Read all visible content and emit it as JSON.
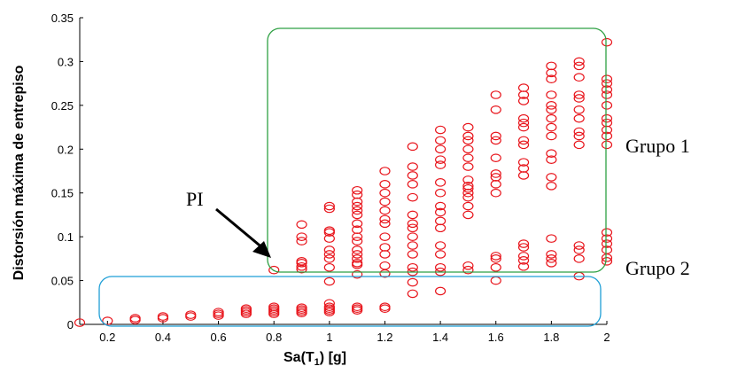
{
  "chart_data": {
    "type": "scatter",
    "title": "",
    "xlabel_main": "Sa(T",
    "xlabel_sub": "1",
    "xlabel_end": ") [g]",
    "ylabel": "Distorsión máxima de entrepiso",
    "xlim": [
      0.1,
      2.0
    ],
    "ylim": [
      0,
      0.35
    ],
    "xticks": [
      0.2,
      0.4,
      0.6,
      0.8,
      1,
      1.2,
      1.4,
      1.6,
      1.8,
      2
    ],
    "xtick_labels": [
      "0.2",
      "0.4",
      "0.6",
      "0.8",
      "1",
      "1.2",
      "1.4",
      "1.6",
      "1.8",
      "2"
    ],
    "yticks": [
      0,
      0.05,
      0.1,
      0.15,
      0.2,
      0.25,
      0.3,
      0.35
    ],
    "ytick_labels": [
      "0",
      "0.05",
      "0.1",
      "0.15",
      "0.2",
      "0.25",
      "0.3",
      "0.35"
    ],
    "marker": "o",
    "marker_color": "#e8141b",
    "series": [
      {
        "name": "Grupo 2",
        "points": [
          [
            0.1,
            0.002
          ],
          [
            0.2,
            0.004
          ],
          [
            0.3,
            0.005
          ],
          [
            0.3,
            0.007
          ],
          [
            0.4,
            0.007
          ],
          [
            0.4,
            0.009
          ],
          [
            0.5,
            0.009
          ],
          [
            0.5,
            0.011
          ],
          [
            0.6,
            0.01
          ],
          [
            0.6,
            0.012
          ],
          [
            0.6,
            0.014
          ],
          [
            0.7,
            0.012
          ],
          [
            0.7,
            0.014
          ],
          [
            0.7,
            0.016
          ],
          [
            0.7,
            0.018
          ],
          [
            0.8,
            0.012
          ],
          [
            0.8,
            0.014
          ],
          [
            0.8,
            0.016
          ],
          [
            0.8,
            0.018
          ],
          [
            0.8,
            0.02
          ],
          [
            0.9,
            0.013
          ],
          [
            0.9,
            0.015
          ],
          [
            0.9,
            0.017
          ],
          [
            0.9,
            0.019
          ],
          [
            1.0,
            0.014
          ],
          [
            1.0,
            0.016
          ],
          [
            1.0,
            0.018
          ],
          [
            1.0,
            0.02
          ],
          [
            1.0,
            0.024
          ],
          [
            1.1,
            0.016
          ],
          [
            1.1,
            0.018
          ],
          [
            1.1,
            0.02
          ],
          [
            1.2,
            0.018
          ],
          [
            1.2,
            0.02
          ]
        ]
      },
      {
        "name": "Grupo 1",
        "points": [
          [
            0.8,
            0.062
          ],
          [
            0.9,
            0.063
          ],
          [
            0.9,
            0.066
          ],
          [
            0.9,
            0.07
          ],
          [
            0.9,
            0.072
          ],
          [
            0.9,
            0.095
          ],
          [
            0.9,
            0.1
          ],
          [
            0.9,
            0.114
          ],
          [
            1.0,
            0.049
          ],
          [
            1.0,
            0.065
          ],
          [
            1.0,
            0.075
          ],
          [
            1.0,
            0.08
          ],
          [
            1.0,
            0.085
          ],
          [
            1.0,
            0.098
          ],
          [
            1.0,
            0.105
          ],
          [
            1.0,
            0.107
          ],
          [
            1.0,
            0.132
          ],
          [
            1.0,
            0.135
          ],
          [
            1.1,
            0.057
          ],
          [
            1.1,
            0.068
          ],
          [
            1.1,
            0.07
          ],
          [
            1.1,
            0.075
          ],
          [
            1.1,
            0.08
          ],
          [
            1.1,
            0.085
          ],
          [
            1.1,
            0.095
          ],
          [
            1.1,
            0.1
          ],
          [
            1.1,
            0.108
          ],
          [
            1.1,
            0.115
          ],
          [
            1.1,
            0.125
          ],
          [
            1.1,
            0.13
          ],
          [
            1.1,
            0.135
          ],
          [
            1.1,
            0.14
          ],
          [
            1.1,
            0.148
          ],
          [
            1.1,
            0.153
          ],
          [
            1.2,
            0.058
          ],
          [
            1.2,
            0.067
          ],
          [
            1.2,
            0.08
          ],
          [
            1.2,
            0.088
          ],
          [
            1.2,
            0.1
          ],
          [
            1.2,
            0.115
          ],
          [
            1.2,
            0.12
          ],
          [
            1.2,
            0.13
          ],
          [
            1.2,
            0.14
          ],
          [
            1.2,
            0.15
          ],
          [
            1.2,
            0.16
          ],
          [
            1.2,
            0.175
          ],
          [
            1.3,
            0.035
          ],
          [
            1.3,
            0.048
          ],
          [
            1.3,
            0.06
          ],
          [
            1.3,
            0.065
          ],
          [
            1.3,
            0.08
          ],
          [
            1.3,
            0.09
          ],
          [
            1.3,
            0.1
          ],
          [
            1.3,
            0.11
          ],
          [
            1.3,
            0.115
          ],
          [
            1.3,
            0.125
          ],
          [
            1.3,
            0.145
          ],
          [
            1.3,
            0.16
          ],
          [
            1.3,
            0.17
          ],
          [
            1.3,
            0.18
          ],
          [
            1.3,
            0.203
          ],
          [
            1.4,
            0.038
          ],
          [
            1.4,
            0.06
          ],
          [
            1.4,
            0.065
          ],
          [
            1.4,
            0.08
          ],
          [
            1.4,
            0.09
          ],
          [
            1.4,
            0.11
          ],
          [
            1.4,
            0.118
          ],
          [
            1.4,
            0.128
          ],
          [
            1.4,
            0.135
          ],
          [
            1.4,
            0.15
          ],
          [
            1.4,
            0.162
          ],
          [
            1.4,
            0.182
          ],
          [
            1.4,
            0.188
          ],
          [
            1.4,
            0.2
          ],
          [
            1.4,
            0.21
          ],
          [
            1.4,
            0.222
          ],
          [
            1.5,
            0.062
          ],
          [
            1.5,
            0.067
          ],
          [
            1.5,
            0.125
          ],
          [
            1.5,
            0.135
          ],
          [
            1.5,
            0.145
          ],
          [
            1.5,
            0.15
          ],
          [
            1.5,
            0.155
          ],
          [
            1.5,
            0.158
          ],
          [
            1.5,
            0.165
          ],
          [
            1.5,
            0.18
          ],
          [
            1.5,
            0.19
          ],
          [
            1.5,
            0.2
          ],
          [
            1.5,
            0.21
          ],
          [
            1.5,
            0.215
          ],
          [
            1.5,
            0.225
          ],
          [
            1.6,
            0.05
          ],
          [
            1.6,
            0.065
          ],
          [
            1.6,
            0.075
          ],
          [
            1.6,
            0.078
          ],
          [
            1.6,
            0.15
          ],
          [
            1.6,
            0.16
          ],
          [
            1.6,
            0.168
          ],
          [
            1.6,
            0.172
          ],
          [
            1.6,
            0.19
          ],
          [
            1.6,
            0.21
          ],
          [
            1.6,
            0.215
          ],
          [
            1.6,
            0.245
          ],
          [
            1.6,
            0.262
          ],
          [
            1.7,
            0.066
          ],
          [
            1.7,
            0.073
          ],
          [
            1.7,
            0.078
          ],
          [
            1.7,
            0.088
          ],
          [
            1.7,
            0.092
          ],
          [
            1.7,
            0.17
          ],
          [
            1.7,
            0.178
          ],
          [
            1.7,
            0.185
          ],
          [
            1.7,
            0.205
          ],
          [
            1.7,
            0.21
          ],
          [
            1.7,
            0.225
          ],
          [
            1.7,
            0.23
          ],
          [
            1.7,
            0.235
          ],
          [
            1.7,
            0.255
          ],
          [
            1.7,
            0.262
          ],
          [
            1.7,
            0.27
          ],
          [
            1.8,
            0.07
          ],
          [
            1.8,
            0.075
          ],
          [
            1.8,
            0.08
          ],
          [
            1.8,
            0.098
          ],
          [
            1.8,
            0.158
          ],
          [
            1.8,
            0.168
          ],
          [
            1.8,
            0.188
          ],
          [
            1.8,
            0.195
          ],
          [
            1.8,
            0.215
          ],
          [
            1.8,
            0.225
          ],
          [
            1.8,
            0.235
          ],
          [
            1.8,
            0.245
          ],
          [
            1.8,
            0.25
          ],
          [
            1.8,
            0.262
          ],
          [
            1.8,
            0.28
          ],
          [
            1.8,
            0.287
          ],
          [
            1.8,
            0.295
          ],
          [
            1.9,
            0.055
          ],
          [
            1.9,
            0.075
          ],
          [
            1.9,
            0.085
          ],
          [
            1.9,
            0.09
          ],
          [
            1.9,
            0.205
          ],
          [
            1.9,
            0.215
          ],
          [
            1.9,
            0.22
          ],
          [
            1.9,
            0.235
          ],
          [
            1.9,
            0.245
          ],
          [
            1.9,
            0.258
          ],
          [
            1.9,
            0.262
          ],
          [
            1.9,
            0.282
          ],
          [
            1.9,
            0.295
          ],
          [
            1.9,
            0.3
          ],
          [
            2.0,
            0.072
          ],
          [
            2.0,
            0.076
          ],
          [
            2.0,
            0.085
          ],
          [
            2.0,
            0.092
          ],
          [
            2.0,
            0.098
          ],
          [
            2.0,
            0.105
          ],
          [
            2.0,
            0.205
          ],
          [
            2.0,
            0.215
          ],
          [
            2.0,
            0.222
          ],
          [
            2.0,
            0.23
          ],
          [
            2.0,
            0.235
          ],
          [
            2.0,
            0.25
          ],
          [
            2.0,
            0.262
          ],
          [
            2.0,
            0.268
          ],
          [
            2.0,
            0.275
          ],
          [
            2.0,
            0.28
          ],
          [
            2.0,
            0.322
          ]
        ]
      }
    ],
    "annotations": {
      "group1_label": "Grupo 1",
      "group2_label": "Grupo 2",
      "pi_label": "PI"
    },
    "region_colors": {
      "group1": "#2ea043",
      "group2": "#1f9fd6"
    }
  }
}
